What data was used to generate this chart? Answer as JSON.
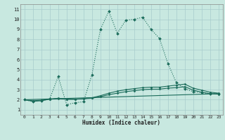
{
  "title": "",
  "xlabel": "Humidex (Indice chaleur)",
  "background_color": "#c8e8e0",
  "grid_color": "#a8cccc",
  "line_color": "#1a6b5a",
  "xlim": [
    -0.5,
    23.5
  ],
  "ylim": [
    0.5,
    11.5
  ],
  "xticks": [
    0,
    1,
    2,
    3,
    4,
    5,
    6,
    7,
    8,
    9,
    10,
    11,
    12,
    13,
    14,
    15,
    16,
    17,
    18,
    19,
    20,
    21,
    22,
    23
  ],
  "yticks": [
    1,
    2,
    3,
    4,
    5,
    6,
    7,
    8,
    9,
    10,
    11
  ],
  "series": [
    {
      "x": [
        0,
        1,
        2,
        3,
        4,
        5,
        6,
        7,
        8,
        9,
        10,
        11,
        12,
        13,
        14,
        15,
        16,
        17,
        18,
        19,
        20,
        21,
        22,
        23
      ],
      "y": [
        2.0,
        1.8,
        1.9,
        2.1,
        4.3,
        1.5,
        1.7,
        1.8,
        4.5,
        9.0,
        10.8,
        8.6,
        9.9,
        10.0,
        10.2,
        9.0,
        8.1,
        5.6,
        3.7,
        3.1,
        2.8,
        2.7,
        2.6,
        2.6
      ],
      "marker": "D",
      "markersize": 2.0,
      "linewidth": 0.8,
      "dotted": true
    },
    {
      "x": [
        0,
        1,
        2,
        3,
        4,
        5,
        6,
        7,
        8,
        9,
        10,
        11,
        12,
        13,
        14,
        15,
        16,
        17,
        18,
        19,
        20,
        21,
        22,
        23
      ],
      "y": [
        2.0,
        1.85,
        1.9,
        2.05,
        2.15,
        2.05,
        2.05,
        2.1,
        2.2,
        2.4,
        2.65,
        2.85,
        3.0,
        3.1,
        3.2,
        3.25,
        3.25,
        3.35,
        3.45,
        3.55,
        3.15,
        2.95,
        2.75,
        2.65
      ],
      "marker": "D",
      "markersize": 1.5,
      "linewidth": 0.8,
      "dotted": false
    },
    {
      "x": [
        0,
        1,
        2,
        3,
        4,
        5,
        6,
        7,
        8,
        9,
        10,
        11,
        12,
        13,
        14,
        15,
        16,
        17,
        18,
        19,
        20,
        21,
        22,
        23
      ],
      "y": [
        2.0,
        1.9,
        1.95,
        2.05,
        2.1,
        2.05,
        2.05,
        2.1,
        2.15,
        2.3,
        2.5,
        2.65,
        2.8,
        2.9,
        3.0,
        3.05,
        3.05,
        3.15,
        3.2,
        3.3,
        2.95,
        2.75,
        2.6,
        2.55
      ],
      "marker": "D",
      "markersize": 1.5,
      "linewidth": 0.8,
      "dotted": false
    },
    {
      "x": [
        0,
        23
      ],
      "y": [
        2.0,
        2.6
      ],
      "marker": null,
      "markersize": 0,
      "linewidth": 0.8,
      "dotted": false
    }
  ]
}
